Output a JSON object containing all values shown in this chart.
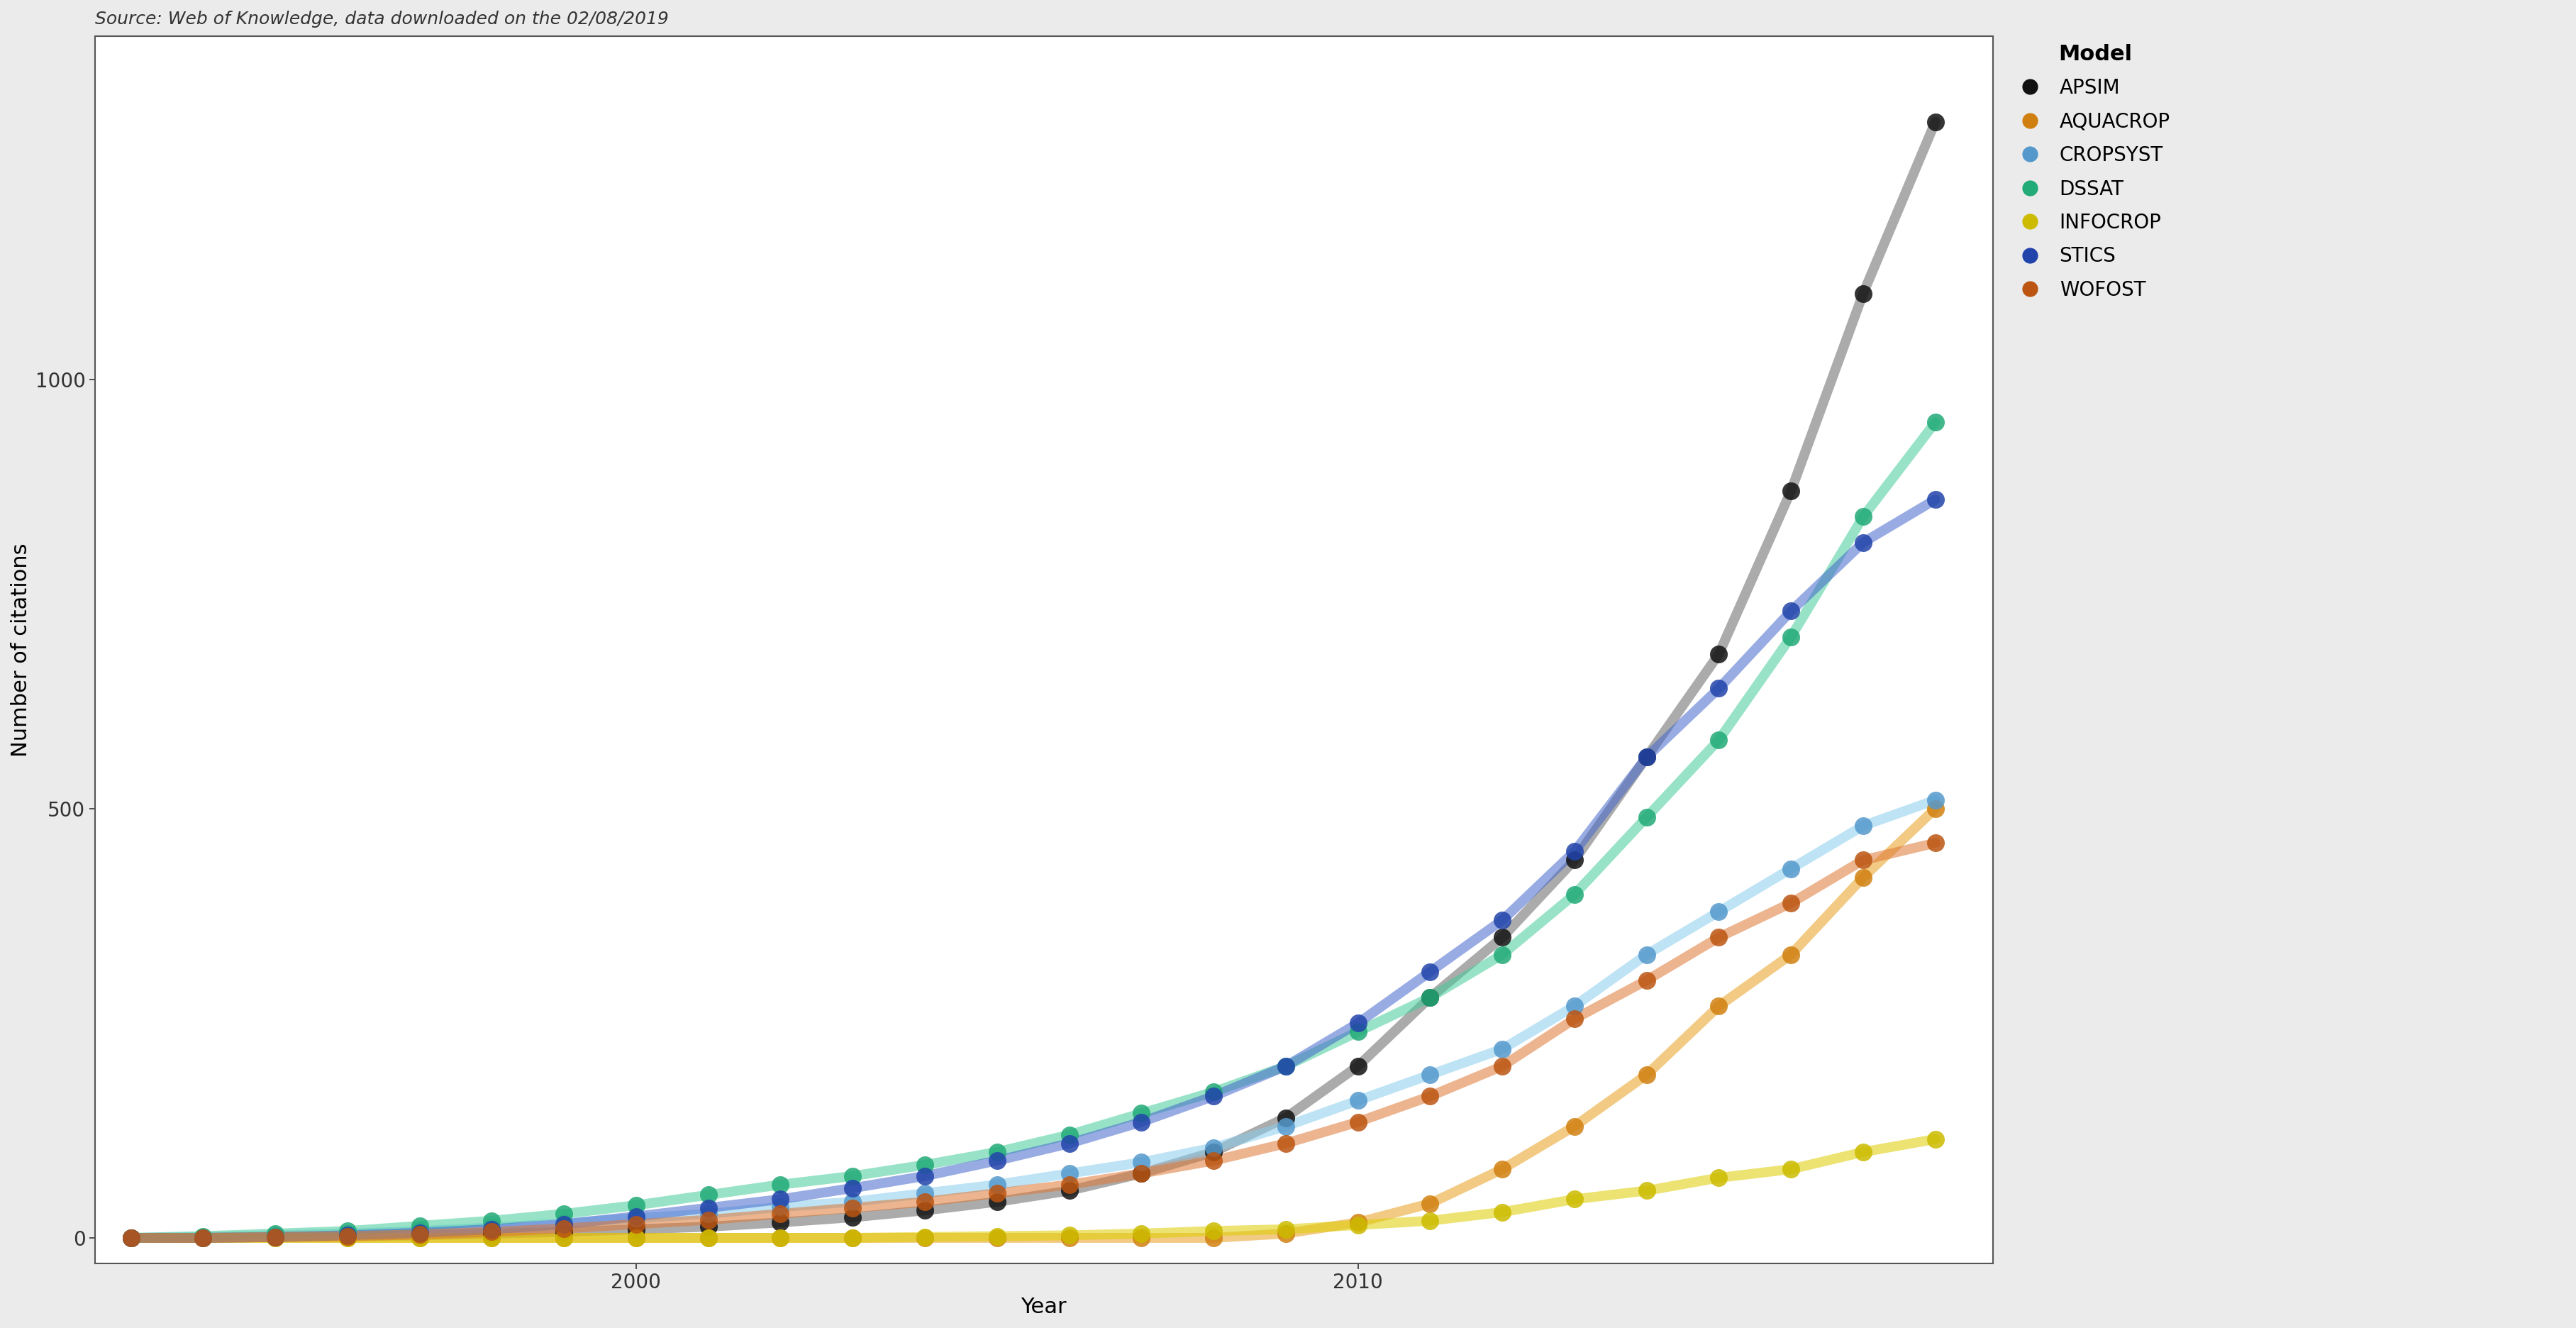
{
  "title": "Source: Web of Knowledge, data downloaded on the 02/08/2019",
  "xlabel": "Year",
  "ylabel": "Number of citations",
  "background_color": "#ebebeb",
  "plot_bg_color": "#ffffff",
  "grid_color": "#ffffff",
  "models": [
    {
      "name": "APSIM",
      "color": "#666666",
      "dot_color": "#111111",
      "years": [
        1993,
        1994,
        1995,
        1996,
        1997,
        1998,
        1999,
        2000,
        2001,
        2002,
        2003,
        2004,
        2005,
        2006,
        2007,
        2008,
        2009,
        2010,
        2011,
        2012,
        2013,
        2014,
        2015,
        2016,
        2017,
        2018
      ],
      "values": [
        0,
        0,
        1,
        2,
        3,
        5,
        7,
        10,
        13,
        18,
        24,
        32,
        42,
        55,
        75,
        100,
        140,
        200,
        280,
        350,
        440,
        560,
        680,
        870,
        1100,
        1300
      ]
    },
    {
      "name": "AQUACROP",
      "color": "#E8A020",
      "dot_color": "#D08010",
      "years": [
        1993,
        1994,
        1995,
        1996,
        1997,
        1998,
        1999,
        2000,
        2001,
        2002,
        2003,
        2004,
        2005,
        2006,
        2007,
        2008,
        2009,
        2010,
        2011,
        2012,
        2013,
        2014,
        2015,
        2016,
        2017,
        2018
      ],
      "values": [
        0,
        0,
        0,
        0,
        0,
        0,
        0,
        0,
        0,
        0,
        0,
        0,
        0,
        0,
        0,
        0,
        5,
        18,
        40,
        80,
        130,
        190,
        270,
        330,
        420,
        500
      ]
    },
    {
      "name": "CROPSYST",
      "color": "#88CCEE",
      "dot_color": "#5599CC",
      "years": [
        1993,
        1994,
        1995,
        1996,
        1997,
        1998,
        1999,
        2000,
        2001,
        2002,
        2003,
        2004,
        2005,
        2006,
        2007,
        2008,
        2009,
        2010,
        2011,
        2012,
        2013,
        2014,
        2015,
        2016,
        2017,
        2018
      ],
      "values": [
        0,
        1,
        3,
        5,
        8,
        12,
        17,
        23,
        28,
        36,
        42,
        52,
        62,
        75,
        88,
        105,
        130,
        160,
        190,
        220,
        270,
        330,
        380,
        430,
        480,
        510
      ]
    },
    {
      "name": "DSSAT",
      "color": "#44CC99",
      "dot_color": "#22AA77",
      "years": [
        1993,
        1994,
        1995,
        1996,
        1997,
        1998,
        1999,
        2000,
        2001,
        2002,
        2003,
        2004,
        2005,
        2006,
        2007,
        2008,
        2009,
        2010,
        2011,
        2012,
        2013,
        2014,
        2015,
        2016,
        2017,
        2018
      ],
      "values": [
        0,
        2,
        5,
        8,
        14,
        20,
        28,
        38,
        50,
        62,
        72,
        85,
        100,
        120,
        145,
        170,
        200,
        240,
        280,
        330,
        400,
        490,
        580,
        700,
        840,
        950
      ]
    },
    {
      "name": "INFOCROP",
      "color": "#DDCC00",
      "dot_color": "#CCBB00",
      "years": [
        1993,
        1994,
        1995,
        1996,
        1997,
        1998,
        1999,
        2000,
        2001,
        2002,
        2003,
        2004,
        2005,
        2006,
        2007,
        2008,
        2009,
        2010,
        2011,
        2012,
        2013,
        2014,
        2015,
        2016,
        2017,
        2018
      ],
      "values": [
        0,
        0,
        0,
        0,
        0,
        0,
        0,
        0,
        0,
        0,
        0,
        1,
        2,
        3,
        5,
        8,
        10,
        15,
        20,
        30,
        45,
        55,
        70,
        80,
        100,
        115
      ]
    },
    {
      "name": "STICS",
      "color": "#4466CC",
      "dot_color": "#2244AA",
      "years": [
        1993,
        1994,
        1995,
        1996,
        1997,
        1998,
        1999,
        2000,
        2001,
        2002,
        2003,
        2004,
        2005,
        2006,
        2007,
        2008,
        2009,
        2010,
        2011,
        2012,
        2013,
        2014,
        2015,
        2016,
        2017,
        2018
      ],
      "values": [
        0,
        0,
        1,
        3,
        6,
        10,
        16,
        25,
        35,
        45,
        58,
        72,
        90,
        110,
        135,
        165,
        200,
        250,
        310,
        370,
        450,
        560,
        640,
        730,
        810,
        860
      ]
    },
    {
      "name": "WOFOST",
      "color": "#DD7733",
      "dot_color": "#BB5511",
      "years": [
        1993,
        1994,
        1995,
        1996,
        1997,
        1998,
        1999,
        2000,
        2001,
        2002,
        2003,
        2004,
        2005,
        2006,
        2007,
        2008,
        2009,
        2010,
        2011,
        2012,
        2013,
        2014,
        2015,
        2016,
        2017,
        2018
      ],
      "values": [
        0,
        0,
        1,
        2,
        4,
        7,
        11,
        16,
        21,
        28,
        35,
        42,
        52,
        62,
        75,
        90,
        110,
        135,
        165,
        200,
        255,
        300,
        350,
        390,
        440,
        460
      ]
    }
  ],
  "ylim": [
    -30,
    1400
  ],
  "xlim": [
    1992.5,
    2018.8
  ],
  "yticks": [
    0,
    500,
    1000
  ],
  "xticks": [
    2000,
    2010
  ],
  "linewidth": 10,
  "markersize": 18,
  "line_alpha": 0.55,
  "marker_alpha": 0.85,
  "legend_title": "Model",
  "legend_title_fontsize": 22,
  "legend_fontsize": 20,
  "title_fontsize": 18,
  "axis_label_fontsize": 22,
  "tick_fontsize": 20
}
